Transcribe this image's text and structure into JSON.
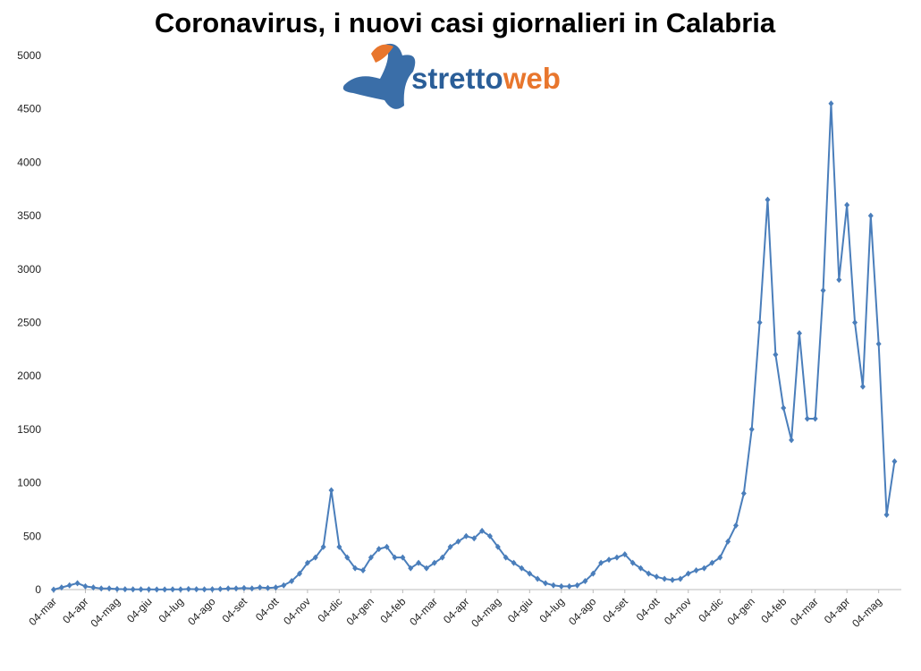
{
  "logo": {
    "part1": "stretto",
    "part2": "web"
  },
  "chart_data": {
    "type": "line",
    "title": "Coronavirus, i nuovi casi giornalieri in Calabria",
    "categories": [
      "04-mar",
      null,
      null,
      null,
      "04-apr",
      null,
      null,
      null,
      "04-mag",
      null,
      null,
      null,
      "04-giu",
      null,
      null,
      null,
      "04-lug",
      null,
      null,
      null,
      "04-ago",
      null,
      null,
      null,
      "04-set",
      null,
      null,
      null,
      "04-ott",
      null,
      null,
      null,
      "04-nov",
      null,
      null,
      null,
      "04-dic",
      null,
      null,
      null,
      "04-gen",
      null,
      null,
      null,
      "04-feb",
      null,
      null,
      null,
      "04-mar",
      null,
      null,
      null,
      "04-apr",
      null,
      null,
      null,
      "04-mag",
      null,
      null,
      null,
      "04-giu",
      null,
      null,
      null,
      "04-lug",
      null,
      null,
      null,
      "04-ago",
      null,
      null,
      null,
      "04-set",
      null,
      null,
      null,
      "04-ott",
      null,
      null,
      null,
      "04-nov",
      null,
      null,
      null,
      "04-dic",
      null,
      null,
      null,
      "04-gen",
      null,
      null,
      null,
      "04-feb",
      null,
      null,
      null,
      "04-mar",
      null,
      null,
      null,
      "04-apr",
      null,
      null,
      null,
      "04-mag",
      null,
      null
    ],
    "series": [
      {
        "name": "Nuovi casi",
        "color": "#4a7ebb",
        "values": [
          0,
          20,
          40,
          60,
          30,
          20,
          10,
          10,
          5,
          3,
          2,
          2,
          2,
          1,
          1,
          2,
          2,
          5,
          3,
          2,
          3,
          5,
          10,
          10,
          15,
          10,
          20,
          15,
          20,
          40,
          80,
          150,
          250,
          300,
          400,
          930,
          400,
          300,
          200,
          180,
          300,
          380,
          400,
          300,
          300,
          200,
          250,
          200,
          250,
          300,
          400,
          450,
          500,
          480,
          550,
          500,
          400,
          300,
          250,
          200,
          150,
          100,
          60,
          40,
          30,
          30,
          40,
          80,
          150,
          250,
          280,
          300,
          330,
          250,
          200,
          150,
          120,
          100,
          90,
          100,
          150,
          180,
          200,
          250,
          300,
          450,
          600,
          900,
          1500,
          2500,
          3650,
          2200,
          1700,
          1400,
          2400,
          1600,
          1600,
          2800,
          4550,
          2900,
          3600,
          2500,
          1900,
          3500,
          2300,
          700,
          1200
        ]
      }
    ],
    "ylim": [
      0,
      5000
    ],
    "yticks": [
      0,
      500,
      1000,
      1500,
      2000,
      2500,
      3000,
      3500,
      4000,
      4500,
      5000
    ],
    "grid": false
  }
}
